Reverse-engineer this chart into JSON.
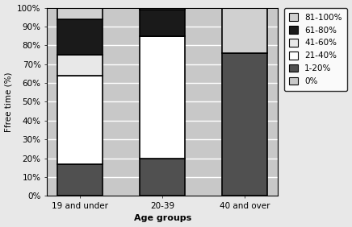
{
  "categories": [
    "19 and under",
    "20-39",
    "40 and over"
  ],
  "series": [
    {
      "label": "0%",
      "values": [
        0,
        0,
        0
      ],
      "color": "#c8c8c8"
    },
    {
      "label": "1-20%",
      "values": [
        17,
        20,
        76
      ],
      "color": "#505050"
    },
    {
      "label": "21-40%",
      "values": [
        47,
        65,
        0
      ],
      "color": "#ffffff"
    },
    {
      "label": "41-60%",
      "values": [
        11,
        0,
        0
      ],
      "color": "#e8e8e8"
    },
    {
      "label": "61-80%",
      "values": [
        19,
        14,
        0
      ],
      "color": "#1a1a1a"
    },
    {
      "label": "81-100%",
      "values": [
        6,
        1,
        24
      ],
      "color": "#d0d0d0"
    }
  ],
  "ylabel": "Ffree time (%)",
  "xlabel": "Age groups",
  "ylim": [
    0,
    100
  ],
  "yticks": [
    0,
    10,
    20,
    30,
    40,
    50,
    60,
    70,
    80,
    90,
    100
  ],
  "ytick_labels": [
    "0%",
    "10%",
    "20%",
    "30%",
    "40%",
    "50%",
    "60%",
    "70%",
    "80%",
    "90%",
    "100%"
  ],
  "axes_facecolor": "#c8c8c8",
  "fig_facecolor": "#e8e8e8",
  "legend_order": [
    5,
    4,
    3,
    2,
    1,
    0
  ],
  "bar_width": 0.55,
  "bar_edgecolor": "#000000",
  "bar_linewidth": 1.2
}
